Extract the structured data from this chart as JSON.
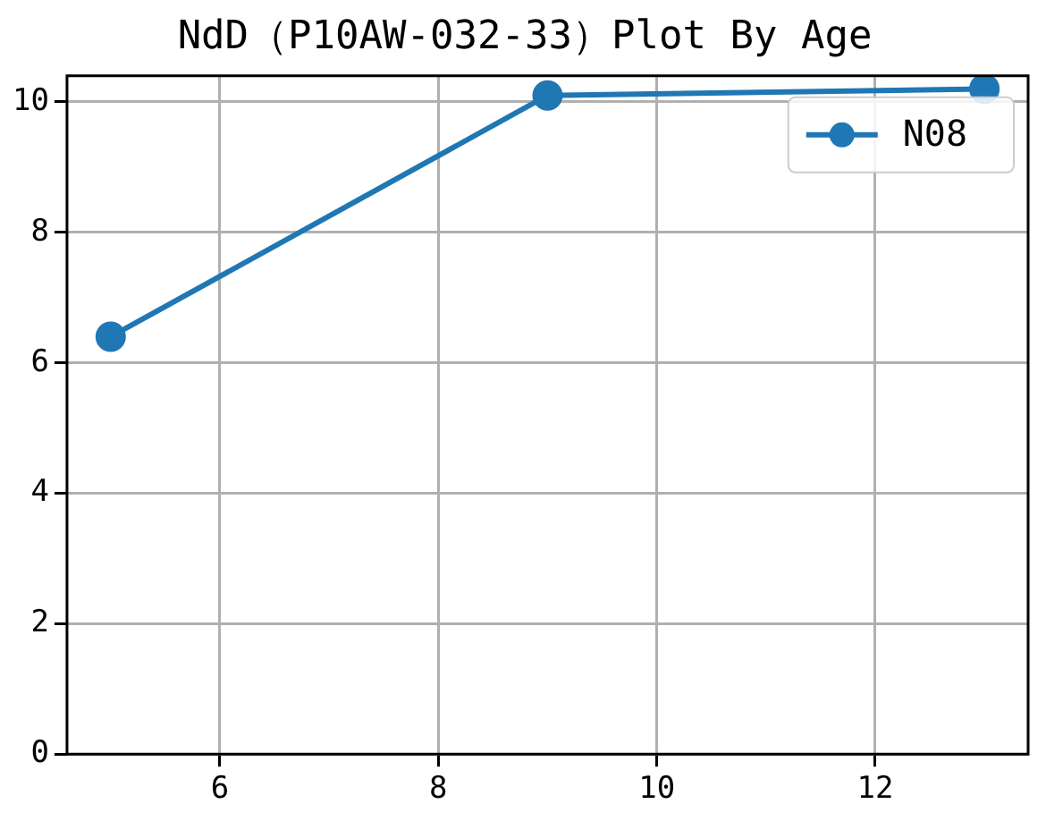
{
  "chart_data": {
    "type": "line",
    "title": "NdD（P10AW-032-33）Plot By Age",
    "x": [
      5,
      9,
      13
    ],
    "series": [
      {
        "name": "N08",
        "color": "#1f77b4",
        "values": [
          6.4,
          10.1,
          10.2
        ]
      }
    ],
    "xlim": [
      4.6,
      13.4
    ],
    "xticks": [
      6,
      8,
      10,
      12
    ],
    "ylim": [
      0,
      10.4
    ],
    "yticks": [
      0,
      2,
      4,
      6,
      8,
      10
    ],
    "grid": true,
    "legend": "top right",
    "marker": "circle",
    "line_style": "solid"
  }
}
